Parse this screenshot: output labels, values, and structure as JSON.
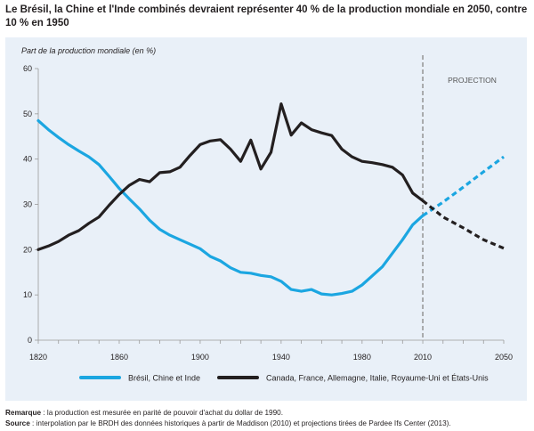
{
  "title": "Le Brésil, la Chine et l'Inde combinés devraient représenter 40 % de la production mondiale en 2050, contre 10 % en 1950",
  "notes": {
    "remark_label": "Remarque",
    "remark_text": " : la production est mesurée en parité de pouvoir d'achat du dollar de 1990.",
    "source_label": "Source",
    "source_text": " : interpolation par le BRDH des données historiques à partir de Maddison (2010) et projections tirées de Pardee Ifs Center (2013)."
  },
  "colors": {
    "series_blue": "#1ba6e1",
    "series_black": "#231f20",
    "panel_bg": "#e9f0f8",
    "axis": "#9a9a9a",
    "projection_line": "#8c8c8c"
  },
  "chart_data": {
    "type": "line",
    "ylabel": "Part de la production mondiale (en %)",
    "xlabel": "",
    "xlim": [
      1820,
      2050
    ],
    "ylim": [
      0,
      60
    ],
    "x_ticks": [
      1820,
      1860,
      1900,
      1940,
      1980,
      2010,
      2050
    ],
    "y_ticks": [
      0,
      10,
      20,
      30,
      40,
      50,
      60
    ],
    "grid": false,
    "legend_position": "bottom",
    "projection": {
      "start": 2010,
      "end": 2050,
      "label": "PROJECTION"
    },
    "series": [
      {
        "name": "Brésil, Chine et Inde",
        "color": "#1ba6e1",
        "x": [
          1820,
          1825,
          1830,
          1835,
          1840,
          1845,
          1850,
          1855,
          1860,
          1865,
          1870,
          1875,
          1880,
          1885,
          1890,
          1895,
          1900,
          1905,
          1910,
          1915,
          1920,
          1925,
          1930,
          1935,
          1940,
          1945,
          1950,
          1955,
          1960,
          1965,
          1970,
          1975,
          1980,
          1985,
          1990,
          1995,
          2000,
          2005,
          2010
        ],
        "y": [
          48.5,
          46.5,
          44.8,
          43.2,
          41.8,
          40.5,
          38.8,
          36.2,
          33.5,
          31.2,
          29,
          26.5,
          24.5,
          23.2,
          22.2,
          21.2,
          20.2,
          18.5,
          17.5,
          16,
          15,
          14.8,
          14.3,
          14,
          13,
          11.2,
          10.8,
          11.2,
          10.2,
          10,
          10.3,
          10.8,
          12.2,
          14.2,
          16.2,
          19.2,
          22.2,
          25.5,
          27.5
        ],
        "projection_x": [
          2010,
          2020,
          2030,
          2040,
          2050
        ],
        "projection_y": [
          27.5,
          30.5,
          33.8,
          37.2,
          40.5
        ]
      },
      {
        "name": "Canada, France, Allemagne, Italie, Royaume-Uni et États-Unis",
        "color": "#231f20",
        "x": [
          1820,
          1825,
          1830,
          1835,
          1840,
          1845,
          1850,
          1855,
          1860,
          1865,
          1870,
          1875,
          1880,
          1885,
          1890,
          1895,
          1900,
          1905,
          1910,
          1915,
          1920,
          1925,
          1930,
          1935,
          1940,
          1945,
          1950,
          1955,
          1960,
          1965,
          1970,
          1975,
          1980,
          1985,
          1990,
          1995,
          2000,
          2005,
          2010
        ],
        "y": [
          20,
          20.8,
          21.8,
          23.2,
          24.2,
          25.8,
          27.2,
          29.8,
          32.2,
          34.2,
          35.5,
          35,
          37,
          37.2,
          38.2,
          40.8,
          43.2,
          44,
          44.3,
          42.2,
          39.5,
          44.2,
          37.8,
          41.5,
          52.2,
          45.3,
          48,
          46.5,
          45.8,
          45.2,
          42.2,
          40.5,
          39.5,
          39.2,
          38.8,
          38.2,
          36.5,
          32.5,
          30.8
        ],
        "projection_x": [
          2010,
          2020,
          2030,
          2040,
          2050
        ],
        "projection_y": [
          30.8,
          27.2,
          24.8,
          22.2,
          20.3
        ]
      }
    ]
  }
}
